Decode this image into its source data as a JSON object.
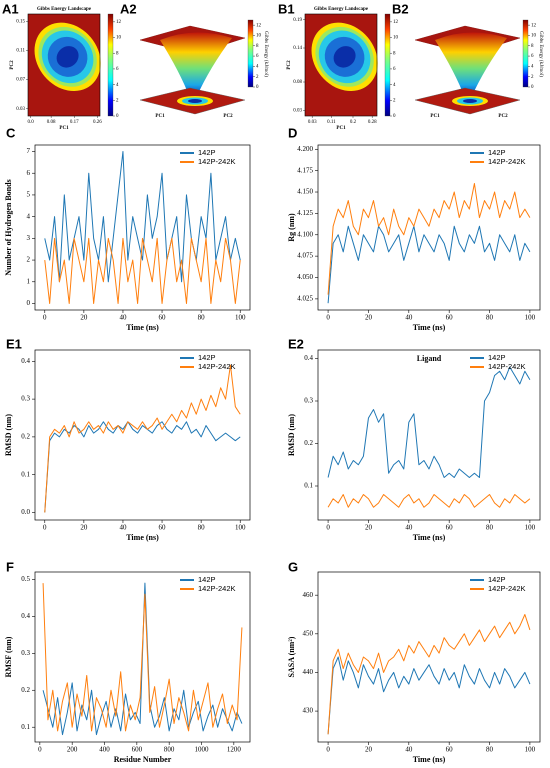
{
  "chart_data": [
    {
      "panel": "A1",
      "type": "heatmap",
      "title": "Gibbs Energy Landscape",
      "xlabel": "PC1",
      "ylabel": "PC2",
      "xlim": [
        -0.01,
        0.27
      ],
      "xticks": [
        {
          "value": 0,
          "label": "0.0"
        },
        0.08,
        0.17,
        0.26
      ],
      "ylim": [
        0.02,
        0.16
      ],
      "yticks": [
        0.03,
        0.07,
        0.11,
        0.15
      ],
      "colormap": "jet",
      "clim": [
        0,
        13
      ],
      "cticks": [
        0,
        2,
        4,
        6,
        8,
        10,
        12
      ]
    },
    {
      "panel": "A2",
      "type": "surface3d",
      "xlabel": "PC1",
      "ylabel": "PC2",
      "clabel": "Gibbs Energy (kJ/mol)",
      "colormap": "jet",
      "clim": [
        0,
        13
      ],
      "cticks": [
        0,
        2,
        4,
        6,
        8,
        10,
        12
      ]
    },
    {
      "panel": "B1",
      "type": "heatmap",
      "title": "Gibbs Energy Landscape",
      "xlabel": "PC1",
      "ylabel": "PC2",
      "xlim": [
        0.0,
        0.3
      ],
      "xticks": [
        0.03,
        0.11,
        0.2,
        0.28
      ],
      "ylim": [
        0.02,
        0.2
      ],
      "yticks": [
        0.03,
        0.08,
        0.14,
        0.19
      ],
      "colormap": "jet",
      "clim": [
        0,
        13
      ],
      "cticks": [
        0,
        2,
        4,
        6,
        8,
        10,
        12
      ]
    },
    {
      "panel": "B2",
      "type": "surface3d",
      "xlabel": "PC1",
      "ylabel": "PC2",
      "clabel": "Gibbs Energy (kJ/mol)",
      "colormap": "jet",
      "clim": [
        0,
        13
      ],
      "cticks": [
        0,
        2,
        4,
        6,
        8,
        10,
        12
      ]
    },
    {
      "panel": "C",
      "type": "line",
      "xlabel": "Time (ns)",
      "ylabel": "Number of Hydrogen Bonds",
      "legend": "upper right",
      "xlim": [
        -5,
        105
      ],
      "xticks": [
        0,
        20,
        40,
        60,
        80,
        100
      ],
      "ylim": [
        -0.3,
        7.3
      ],
      "yticks": [
        0,
        1,
        2,
        3,
        4,
        5,
        6,
        7
      ],
      "x": [
        0,
        2.5,
        5,
        7.5,
        10,
        12.5,
        15,
        17.5,
        20,
        22.5,
        25,
        27.5,
        30,
        32.5,
        35,
        37.5,
        40,
        42.5,
        45,
        47.5,
        50,
        52.5,
        55,
        57.5,
        60,
        62.5,
        65,
        67.5,
        70,
        72.5,
        75,
        77.5,
        80,
        82.5,
        85,
        87.5,
        90,
        92.5,
        95,
        97.5,
        100
      ],
      "series": [
        {
          "name": "142P",
          "color": "#1f77b4",
          "values": [
            3,
            2,
            4,
            1,
            5,
            2,
            3,
            4,
            2,
            6,
            3,
            2,
            4,
            1,
            3,
            5,
            7,
            2,
            4,
            3,
            2,
            5,
            3,
            4,
            6,
            2,
            3,
            4,
            1,
            5,
            3,
            2,
            4,
            3,
            6,
            2,
            3,
            4,
            2,
            3,
            2
          ]
        },
        {
          "name": "142P-242K",
          "color": "#ff7f0e",
          "values": [
            2,
            0,
            3,
            1,
            2,
            0,
            3,
            2,
            1,
            3,
            0,
            2,
            1,
            3,
            2,
            0,
            3,
            1,
            2,
            0,
            3,
            2,
            1,
            3,
            0,
            2,
            3,
            1,
            2,
            0,
            3,
            2,
            1,
            3,
            0,
            2,
            1,
            3,
            2,
            0,
            2
          ]
        }
      ]
    },
    {
      "panel": "D",
      "type": "line",
      "xlabel": "Time (ns)",
      "ylabel": "Rg (nm)",
      "legend": "upper right",
      "xlim": [
        -5,
        105
      ],
      "xticks": [
        0,
        20,
        40,
        60,
        80,
        100
      ],
      "ylim": [
        4.012,
        4.205
      ],
      "yticks": [
        4.025,
        {
          "value": 4.05,
          "label": "4.050"
        },
        4.075,
        {
          "value": 4.1,
          "label": "4.100"
        },
        4.125,
        {
          "value": 4.15,
          "label": "4.150"
        },
        4.175,
        {
          "value": 4.2,
          "label": "4.200"
        }
      ],
      "x": [
        0,
        2.5,
        5,
        7.5,
        10,
        12.5,
        15,
        17.5,
        20,
        22.5,
        25,
        27.5,
        30,
        32.5,
        35,
        37.5,
        40,
        42.5,
        45,
        47.5,
        50,
        52.5,
        55,
        57.5,
        60,
        62.5,
        65,
        67.5,
        70,
        72.5,
        75,
        77.5,
        80,
        82.5,
        85,
        87.5,
        90,
        92.5,
        95,
        97.5,
        100
      ],
      "series": [
        {
          "name": "142P",
          "color": "#1f77b4",
          "values": [
            4.02,
            4.09,
            4.1,
            4.08,
            4.11,
            4.09,
            4.07,
            4.1,
            4.09,
            4.08,
            4.11,
            4.1,
            4.08,
            4.09,
            4.1,
            4.07,
            4.09,
            4.11,
            4.08,
            4.1,
            4.09,
            4.08,
            4.1,
            4.09,
            4.07,
            4.11,
            4.09,
            4.08,
            4.1,
            4.09,
            4.11,
            4.08,
            4.09,
            4.07,
            4.1,
            4.09,
            4.08,
            4.1,
            4.07,
            4.09,
            4.08
          ]
        },
        {
          "name": "142P-242K",
          "color": "#ff7f0e",
          "values": [
            4.03,
            4.11,
            4.13,
            4.12,
            4.14,
            4.11,
            4.1,
            4.13,
            4.12,
            4.14,
            4.11,
            4.12,
            4.1,
            4.13,
            4.11,
            4.1,
            4.12,
            4.11,
            4.13,
            4.12,
            4.11,
            4.13,
            4.12,
            4.14,
            4.13,
            4.15,
            4.12,
            4.14,
            4.13,
            4.16,
            4.12,
            4.14,
            4.13,
            4.15,
            4.12,
            4.14,
            4.13,
            4.15,
            4.12,
            4.13,
            4.12
          ]
        }
      ]
    },
    {
      "panel": "E1",
      "type": "line",
      "xlabel": "Time (ns)",
      "ylabel": "RMSD (nm)",
      "legend": "upper right",
      "xlim": [
        -5,
        105
      ],
      "xticks": [
        0,
        20,
        40,
        60,
        80,
        100
      ],
      "ylim": [
        -0.02,
        0.43
      ],
      "yticks": [
        {
          "value": 0,
          "label": "0.0"
        },
        0.1,
        0.2,
        0.3,
        0.4
      ],
      "x": [
        0,
        2.5,
        5,
        7.5,
        10,
        12.5,
        15,
        17.5,
        20,
        22.5,
        25,
        27.5,
        30,
        32.5,
        35,
        37.5,
        40,
        42.5,
        45,
        47.5,
        50,
        52.5,
        55,
        57.5,
        60,
        62.5,
        65,
        67.5,
        70,
        72.5,
        75,
        77.5,
        80,
        82.5,
        85,
        87.5,
        90,
        92.5,
        95,
        97.5,
        100
      ],
      "series": [
        {
          "name": "142P",
          "color": "#1f77b4",
          "values": [
            0.0,
            0.19,
            0.21,
            0.2,
            0.22,
            0.21,
            0.23,
            0.22,
            0.2,
            0.23,
            0.21,
            0.22,
            0.24,
            0.22,
            0.21,
            0.23,
            0.22,
            0.24,
            0.22,
            0.21,
            0.23,
            0.22,
            0.21,
            0.23,
            0.24,
            0.22,
            0.21,
            0.23,
            0.22,
            0.24,
            0.21,
            0.22,
            0.2,
            0.23,
            0.21,
            0.19,
            0.2,
            0.21,
            0.2,
            0.19,
            0.2
          ]
        },
        {
          "name": "142P-242K",
          "color": "#ff7f0e",
          "values": [
            0.0,
            0.2,
            0.22,
            0.21,
            0.23,
            0.2,
            0.24,
            0.21,
            0.22,
            0.24,
            0.22,
            0.23,
            0.21,
            0.24,
            0.22,
            0.23,
            0.21,
            0.24,
            0.23,
            0.22,
            0.24,
            0.22,
            0.23,
            0.25,
            0.22,
            0.24,
            0.26,
            0.24,
            0.27,
            0.25,
            0.29,
            0.26,
            0.3,
            0.27,
            0.31,
            0.28,
            0.33,
            0.3,
            0.39,
            0.28,
            0.26
          ]
        }
      ]
    },
    {
      "panel": "E2",
      "type": "line",
      "title": "Ligand",
      "xlabel": "Time (ns)",
      "ylabel": "RMSD (nm)",
      "legend": "upper right",
      "xlim": [
        -5,
        105
      ],
      "xticks": [
        0,
        20,
        40,
        60,
        80,
        100
      ],
      "ylim": [
        0.02,
        0.42
      ],
      "yticks": [
        0.1,
        0.2,
        0.3,
        0.4
      ],
      "x": [
        0,
        2.5,
        5,
        7.5,
        10,
        12.5,
        15,
        17.5,
        20,
        22.5,
        25,
        27.5,
        30,
        32.5,
        35,
        37.5,
        40,
        42.5,
        45,
        47.5,
        50,
        52.5,
        55,
        57.5,
        60,
        62.5,
        65,
        67.5,
        70,
        72.5,
        75,
        77.5,
        80,
        82.5,
        85,
        87.5,
        90,
        92.5,
        95,
        97.5,
        100
      ],
      "series": [
        {
          "name": "142P",
          "color": "#1f77b4",
          "values": [
            0.12,
            0.17,
            0.15,
            0.18,
            0.14,
            0.16,
            0.15,
            0.17,
            0.26,
            0.28,
            0.25,
            0.27,
            0.13,
            0.15,
            0.16,
            0.14,
            0.25,
            0.27,
            0.15,
            0.16,
            0.14,
            0.17,
            0.15,
            0.12,
            0.13,
            0.12,
            0.14,
            0.13,
            0.12,
            0.13,
            0.12,
            0.3,
            0.32,
            0.36,
            0.37,
            0.35,
            0.38,
            0.36,
            0.34,
            0.37,
            0.35
          ]
        },
        {
          "name": "142P-242K",
          "color": "#ff7f0e",
          "values": [
            0.05,
            0.07,
            0.06,
            0.08,
            0.05,
            0.07,
            0.06,
            0.08,
            0.07,
            0.05,
            0.06,
            0.08,
            0.07,
            0.06,
            0.05,
            0.07,
            0.08,
            0.06,
            0.07,
            0.05,
            0.06,
            0.08,
            0.07,
            0.06,
            0.05,
            0.07,
            0.06,
            0.08,
            0.07,
            0.05,
            0.06,
            0.07,
            0.08,
            0.06,
            0.05,
            0.07,
            0.06,
            0.08,
            0.07,
            0.06,
            0.07
          ]
        }
      ]
    },
    {
      "panel": "F",
      "type": "line",
      "xlabel": "Residue Number",
      "ylabel": "RMSF (nm)",
      "legend": "upper right",
      "xlim": [
        -30,
        1300
      ],
      "xticks": [
        0,
        200,
        400,
        600,
        800,
        1000,
        1200
      ],
      "ylim": [
        0.06,
        0.52
      ],
      "yticks": [
        0.1,
        0.2,
        0.3,
        0.4,
        0.5
      ],
      "x": [
        20,
        50,
        80,
        110,
        140,
        170,
        200,
        230,
        260,
        290,
        320,
        350,
        380,
        410,
        440,
        470,
        500,
        530,
        560,
        590,
        620,
        650,
        680,
        710,
        740,
        770,
        800,
        830,
        860,
        890,
        920,
        950,
        980,
        1010,
        1040,
        1070,
        1100,
        1130,
        1160,
        1190,
        1220,
        1250
      ],
      "series": [
        {
          "name": "142P",
          "color": "#1f77b4",
          "values": [
            0.2,
            0.15,
            0.1,
            0.18,
            0.08,
            0.14,
            0.22,
            0.09,
            0.16,
            0.12,
            0.2,
            0.08,
            0.13,
            0.17,
            0.1,
            0.15,
            0.09,
            0.19,
            0.12,
            0.14,
            0.11,
            0.49,
            0.16,
            0.1,
            0.13,
            0.18,
            0.09,
            0.15,
            0.12,
            0.2,
            0.1,
            0.14,
            0.17,
            0.09,
            0.13,
            0.16,
            0.1,
            0.15,
            0.12,
            0.09,
            0.14,
            0.11
          ]
        },
        {
          "name": "142P-242K",
          "color": "#ff7f0e",
          "values": [
            0.49,
            0.12,
            0.2,
            0.09,
            0.17,
            0.22,
            0.1,
            0.19,
            0.13,
            0.24,
            0.09,
            0.18,
            0.15,
            0.1,
            0.2,
            0.13,
            0.25,
            0.09,
            0.16,
            0.12,
            0.18,
            0.46,
            0.14,
            0.21,
            0.1,
            0.16,
            0.23,
            0.11,
            0.18,
            0.14,
            0.09,
            0.2,
            0.12,
            0.17,
            0.22,
            0.1,
            0.15,
            0.19,
            0.11,
            0.16,
            0.12,
            0.37
          ]
        }
      ]
    },
    {
      "panel": "G",
      "type": "line",
      "xlabel": "Time (ns)",
      "ylabel": "SASA (nm²)",
      "legend": "upper right",
      "xlim": [
        -5,
        105
      ],
      "xticks": [
        0,
        20,
        40,
        60,
        80,
        100
      ],
      "ylim": [
        422,
        466
      ],
      "yticks": [
        430,
        440,
        450,
        460
      ],
      "x": [
        0,
        2.5,
        5,
        7.5,
        10,
        12.5,
        15,
        17.5,
        20,
        22.5,
        25,
        27.5,
        30,
        32.5,
        35,
        37.5,
        40,
        42.5,
        45,
        47.5,
        50,
        52.5,
        55,
        57.5,
        60,
        62.5,
        65,
        67.5,
        70,
        72.5,
        75,
        77.5,
        80,
        82.5,
        85,
        87.5,
        90,
        92.5,
        95,
        97.5,
        100
      ],
      "series": [
        {
          "name": "142P",
          "color": "#1f77b4",
          "values": [
            424,
            441,
            444,
            438,
            443,
            440,
            436,
            442,
            439,
            437,
            441,
            435,
            438,
            440,
            436,
            439,
            437,
            441,
            438,
            440,
            442,
            439,
            437,
            441,
            438,
            440,
            436,
            442,
            439,
            437,
            441,
            438,
            436,
            440,
            437,
            441,
            439,
            436,
            438,
            440,
            437
          ]
        },
        {
          "name": "142P-242K",
          "color": "#ff7f0e",
          "values": [
            424,
            443,
            446,
            441,
            445,
            442,
            440,
            444,
            443,
            441,
            445,
            440,
            443,
            444,
            446,
            443,
            447,
            445,
            448,
            446,
            444,
            447,
            445,
            449,
            447,
            446,
            448,
            450,
            447,
            449,
            451,
            448,
            450,
            452,
            449,
            451,
            453,
            450,
            452,
            455,
            451
          ]
        }
      ]
    }
  ]
}
